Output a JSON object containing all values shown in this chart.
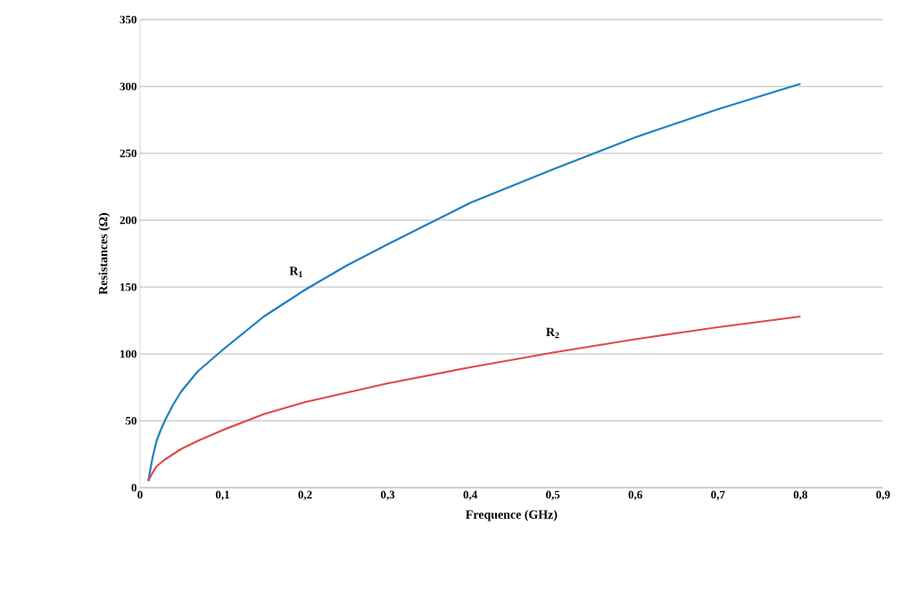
{
  "chart_data": {
    "type": "line",
    "xlabel": "Frequence (GHz)",
    "ylabel": "Resistances (Ω)",
    "xlim": [
      0,
      0.9
    ],
    "ylim": [
      0,
      350
    ],
    "xticks": [
      0,
      {
        "value": 0.1,
        "label": "0,1"
      },
      {
        "value": 0.2,
        "label": "0,2"
      },
      {
        "value": 0.3,
        "label": "0,3"
      },
      {
        "value": 0.4,
        "label": "0,4"
      },
      {
        "value": 0.5,
        "label": "0,5"
      },
      {
        "value": 0.6,
        "label": "0,6"
      },
      {
        "value": 0.7,
        "label": "0,7"
      },
      {
        "value": 0.8,
        "label": "0,8"
      },
      {
        "value": 0.9,
        "label": "0,9"
      }
    ],
    "yticks": [
      0,
      50,
      100,
      150,
      200,
      250,
      300,
      350
    ],
    "grid": "y",
    "marker": "none",
    "line_style": "solid",
    "series": [
      {
        "name": "R$_{1}$",
        "color": "#1f7fc0",
        "x": [
          0.01,
          0.015,
          0.02,
          0.025,
          0.03,
          0.04,
          0.05,
          0.07,
          0.1,
          0.15,
          0.2,
          0.25,
          0.3,
          0.4,
          0.5,
          0.6,
          0.7,
          0.8
        ],
        "values": [
          5,
          22,
          35,
          43,
          50,
          62,
          72,
          87,
          103,
          128,
          148,
          166,
          182,
          213,
          238,
          262,
          283,
          302
        ]
      },
      {
        "name": "R$_{2}$",
        "color": "#e04a4a",
        "x": [
          0.01,
          0.015,
          0.02,
          0.03,
          0.04,
          0.05,
          0.07,
          0.1,
          0.15,
          0.2,
          0.3,
          0.4,
          0.5,
          0.6,
          0.7,
          0.8
        ],
        "values": [
          5,
          11,
          16,
          21,
          25,
          29,
          35,
          43,
          55,
          64,
          78,
          90,
          101,
          111,
          120,
          128
        ]
      }
    ]
  }
}
